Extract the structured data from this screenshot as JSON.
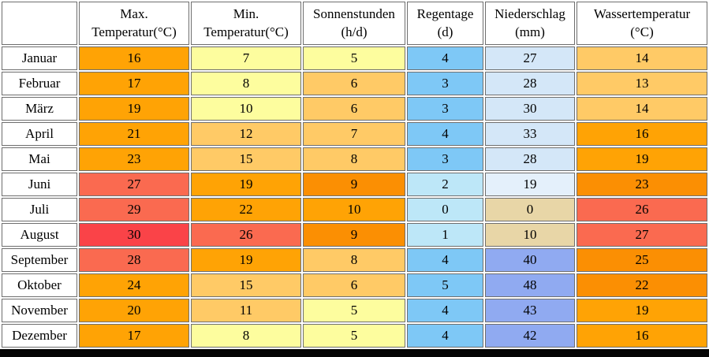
{
  "palette": {
    "orange": "#FFA305",
    "darkOrange": "#FB8F03",
    "lightOrange": "#FFCA66",
    "paleYellow": "#FDFD9E",
    "salmon": "#FA6A50",
    "red": "#FA4348",
    "skyBlue": "#7EC8F6",
    "lightCyan": "#BDE7F8",
    "lightBlue": "#D4E7F8",
    "paleBlue": "#E4F0FB",
    "periwinkle": "#90AAF1",
    "tan": "#E8D6A7"
  },
  "table": {
    "columns": [
      {
        "key": "month",
        "label": ""
      },
      {
        "key": "max_temp",
        "label": "Max.\nTemperatur(°C)"
      },
      {
        "key": "min_temp",
        "label": "Min.\nTemperatur(°C)"
      },
      {
        "key": "sun_hours",
        "label": "Sonnenstunden\n(h/d)"
      },
      {
        "key": "rain_days",
        "label": "Regentage\n(d)"
      },
      {
        "key": "precipitation",
        "label": "Niederschlag\n(mm)"
      },
      {
        "key": "water_temp",
        "label": "Wassertemperatur\n(°C)"
      }
    ],
    "rows": [
      {
        "month": "Januar",
        "cells": [
          {
            "value": "16",
            "color": "orange"
          },
          {
            "value": "7",
            "color": "paleYellow"
          },
          {
            "value": "5",
            "color": "paleYellow"
          },
          {
            "value": "4",
            "color": "skyBlue"
          },
          {
            "value": "27",
            "color": "lightBlue"
          },
          {
            "value": "14",
            "color": "lightOrange"
          }
        ]
      },
      {
        "month": "Februar",
        "cells": [
          {
            "value": "17",
            "color": "orange"
          },
          {
            "value": "8",
            "color": "paleYellow"
          },
          {
            "value": "6",
            "color": "lightOrange"
          },
          {
            "value": "3",
            "color": "skyBlue"
          },
          {
            "value": "28",
            "color": "lightBlue"
          },
          {
            "value": "13",
            "color": "lightOrange"
          }
        ]
      },
      {
        "month": "März",
        "cells": [
          {
            "value": "19",
            "color": "orange"
          },
          {
            "value": "10",
            "color": "paleYellow"
          },
          {
            "value": "6",
            "color": "lightOrange"
          },
          {
            "value": "3",
            "color": "skyBlue"
          },
          {
            "value": "30",
            "color": "lightBlue"
          },
          {
            "value": "14",
            "color": "lightOrange"
          }
        ]
      },
      {
        "month": "April",
        "cells": [
          {
            "value": "21",
            "color": "orange"
          },
          {
            "value": "12",
            "color": "lightOrange"
          },
          {
            "value": "7",
            "color": "lightOrange"
          },
          {
            "value": "4",
            "color": "skyBlue"
          },
          {
            "value": "33",
            "color": "lightBlue"
          },
          {
            "value": "16",
            "color": "orange"
          }
        ]
      },
      {
        "month": "Mai",
        "cells": [
          {
            "value": "23",
            "color": "orange"
          },
          {
            "value": "15",
            "color": "lightOrange"
          },
          {
            "value": "8",
            "color": "lightOrange"
          },
          {
            "value": "3",
            "color": "skyBlue"
          },
          {
            "value": "28",
            "color": "lightBlue"
          },
          {
            "value": "19",
            "color": "orange"
          }
        ]
      },
      {
        "month": "Juni",
        "cells": [
          {
            "value": "27",
            "color": "salmon"
          },
          {
            "value": "19",
            "color": "orange"
          },
          {
            "value": "9",
            "color": "darkOrange"
          },
          {
            "value": "2",
            "color": "lightCyan"
          },
          {
            "value": "19",
            "color": "paleBlue"
          },
          {
            "value": "23",
            "color": "darkOrange"
          }
        ]
      },
      {
        "month": "Juli",
        "cells": [
          {
            "value": "29",
            "color": "salmon"
          },
          {
            "value": "22",
            "color": "orange"
          },
          {
            "value": "10",
            "color": "orange"
          },
          {
            "value": "0",
            "color": "lightCyan"
          },
          {
            "value": "0",
            "color": "tan"
          },
          {
            "value": "26",
            "color": "salmon"
          }
        ]
      },
      {
        "month": "August",
        "cells": [
          {
            "value": "30",
            "color": "red"
          },
          {
            "value": "26",
            "color": "salmon"
          },
          {
            "value": "9",
            "color": "darkOrange"
          },
          {
            "value": "1",
            "color": "lightCyan"
          },
          {
            "value": "10",
            "color": "tan"
          },
          {
            "value": "27",
            "color": "salmon"
          }
        ]
      },
      {
        "month": "September",
        "cells": [
          {
            "value": "28",
            "color": "salmon"
          },
          {
            "value": "19",
            "color": "orange"
          },
          {
            "value": "8",
            "color": "lightOrange"
          },
          {
            "value": "4",
            "color": "skyBlue"
          },
          {
            "value": "40",
            "color": "periwinkle"
          },
          {
            "value": "25",
            "color": "darkOrange"
          }
        ]
      },
      {
        "month": "Oktober",
        "cells": [
          {
            "value": "24",
            "color": "orange"
          },
          {
            "value": "15",
            "color": "lightOrange"
          },
          {
            "value": "6",
            "color": "lightOrange"
          },
          {
            "value": "5",
            "color": "skyBlue"
          },
          {
            "value": "48",
            "color": "periwinkle"
          },
          {
            "value": "22",
            "color": "darkOrange"
          }
        ]
      },
      {
        "month": "November",
        "cells": [
          {
            "value": "20",
            "color": "orange"
          },
          {
            "value": "11",
            "color": "lightOrange"
          },
          {
            "value": "5",
            "color": "paleYellow"
          },
          {
            "value": "4",
            "color": "skyBlue"
          },
          {
            "value": "43",
            "color": "periwinkle"
          },
          {
            "value": "19",
            "color": "orange"
          }
        ]
      },
      {
        "month": "Dezember",
        "cells": [
          {
            "value": "17",
            "color": "orange"
          },
          {
            "value": "8",
            "color": "paleYellow"
          },
          {
            "value": "5",
            "color": "paleYellow"
          },
          {
            "value": "4",
            "color": "skyBlue"
          },
          {
            "value": "42",
            "color": "periwinkle"
          },
          {
            "value": "16",
            "color": "orange"
          }
        ]
      }
    ]
  },
  "chart_data": {
    "type": "table",
    "title": "",
    "categories": [
      "Januar",
      "Februar",
      "März",
      "April",
      "Mai",
      "Juni",
      "Juli",
      "August",
      "September",
      "Oktober",
      "November",
      "Dezember"
    ],
    "series": [
      {
        "name": "Max. Temperatur(°C)",
        "values": [
          16,
          17,
          19,
          21,
          23,
          27,
          29,
          30,
          28,
          24,
          20,
          17
        ]
      },
      {
        "name": "Min. Temperatur(°C)",
        "values": [
          7,
          8,
          10,
          12,
          15,
          19,
          22,
          26,
          19,
          15,
          11,
          8
        ]
      },
      {
        "name": "Sonnenstunden (h/d)",
        "values": [
          5,
          6,
          6,
          7,
          8,
          9,
          10,
          9,
          8,
          6,
          5,
          5
        ]
      },
      {
        "name": "Regentage (d)",
        "values": [
          4,
          3,
          3,
          4,
          3,
          2,
          0,
          1,
          4,
          5,
          4,
          4
        ]
      },
      {
        "name": "Niederschlag (mm)",
        "values": [
          27,
          28,
          30,
          33,
          28,
          19,
          0,
          10,
          40,
          48,
          43,
          42
        ]
      },
      {
        "name": "Wassertemperatur (°C)",
        "values": [
          14,
          13,
          14,
          16,
          19,
          23,
          26,
          27,
          25,
          22,
          19,
          16
        ]
      }
    ]
  }
}
